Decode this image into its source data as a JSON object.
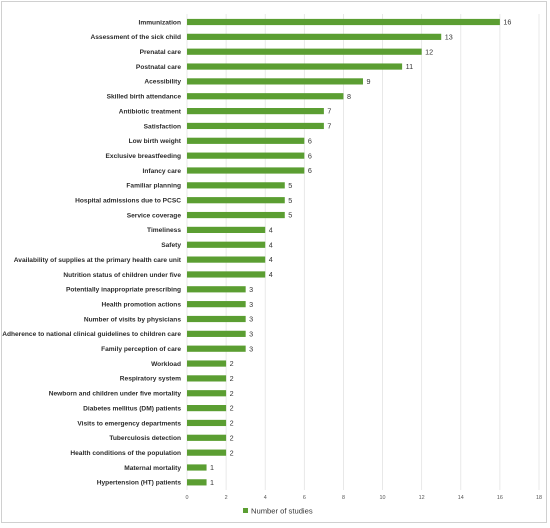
{
  "chart_data": {
    "type": "bar",
    "orientation": "horizontal",
    "categories": [
      "Immunization",
      "Assessment of the sick child",
      "Prenatal care",
      "Postnatal care",
      "Acessibility",
      "Skilled birth attendance",
      "Antibiotic treatment",
      "Satisfaction",
      "Low birth weight",
      "Exclusive breastfeeding",
      "Infancy care",
      "Familiar planning",
      "Hospital admissions due to PCSC",
      "Service coverage",
      "Timeliness",
      "Safety",
      "Availability of supplies at the primary health care unit",
      "Nutrition status of children under five",
      "Potentially inappropriate prescribing",
      "Health promotion actions",
      "Number of visits by physicians",
      "Adherence to national clinical guidelines to children care",
      "Family perception of care",
      "Workload",
      "Respiratory system",
      "Newborn and children under five mortality",
      "Diabetes mellitus (DM) patients",
      "Visits to emergency departments",
      "Tuberculosis detection",
      "Health conditions of the population",
      "Maternal mortality",
      "Hypertension (HT) patients"
    ],
    "series": [
      {
        "name": "Number of studies",
        "values": [
          16,
          13,
          12,
          11,
          9,
          8,
          7,
          7,
          6,
          6,
          6,
          5,
          5,
          5,
          4,
          4,
          4,
          4,
          3,
          3,
          3,
          3,
          3,
          2,
          2,
          2,
          2,
          2,
          2,
          2,
          1,
          1
        ]
      }
    ],
    "xlim": [
      0,
      18
    ],
    "xticks": [
      0,
      2,
      4,
      6,
      8,
      10,
      12,
      14,
      16,
      18
    ],
    "grid": "vertical",
    "legend": "bottom",
    "bar_color": "#5b9e32"
  }
}
